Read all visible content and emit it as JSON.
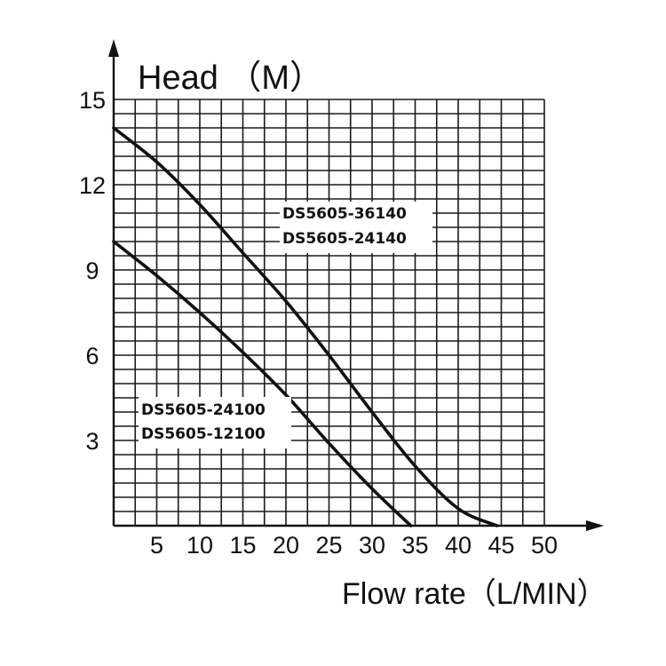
{
  "chart_data": {
    "type": "line",
    "title": "",
    "xlabel": "Flow rate（L/MIN）",
    "ylabel": "Head （M）",
    "xlim": [
      0,
      50
    ],
    "ylim": [
      0,
      15
    ],
    "xticks": [
      "5",
      "10",
      "15",
      "20",
      "25",
      "30",
      "35",
      "40",
      "45",
      "50"
    ],
    "yticks": [
      "3",
      "6",
      "9",
      "12",
      "15"
    ],
    "grid": true,
    "series": [
      {
        "labels": [
          "DS5605-36140",
          "DS5605-24140"
        ],
        "x": [
          0,
          5,
          10,
          15,
          20,
          25,
          30,
          35,
          40,
          44.5
        ],
        "y": [
          14.0,
          12.8,
          11.3,
          9.6,
          7.9,
          6.0,
          4.0,
          2.1,
          0.6,
          0
        ]
      },
      {
        "labels": [
          "DS5605-24100",
          "DS5605-12100"
        ],
        "x": [
          0,
          5,
          10,
          15,
          20,
          25,
          30,
          34.5
        ],
        "y": [
          10.0,
          8.8,
          7.5,
          6.1,
          4.6,
          2.9,
          1.3,
          0
        ]
      }
    ]
  }
}
